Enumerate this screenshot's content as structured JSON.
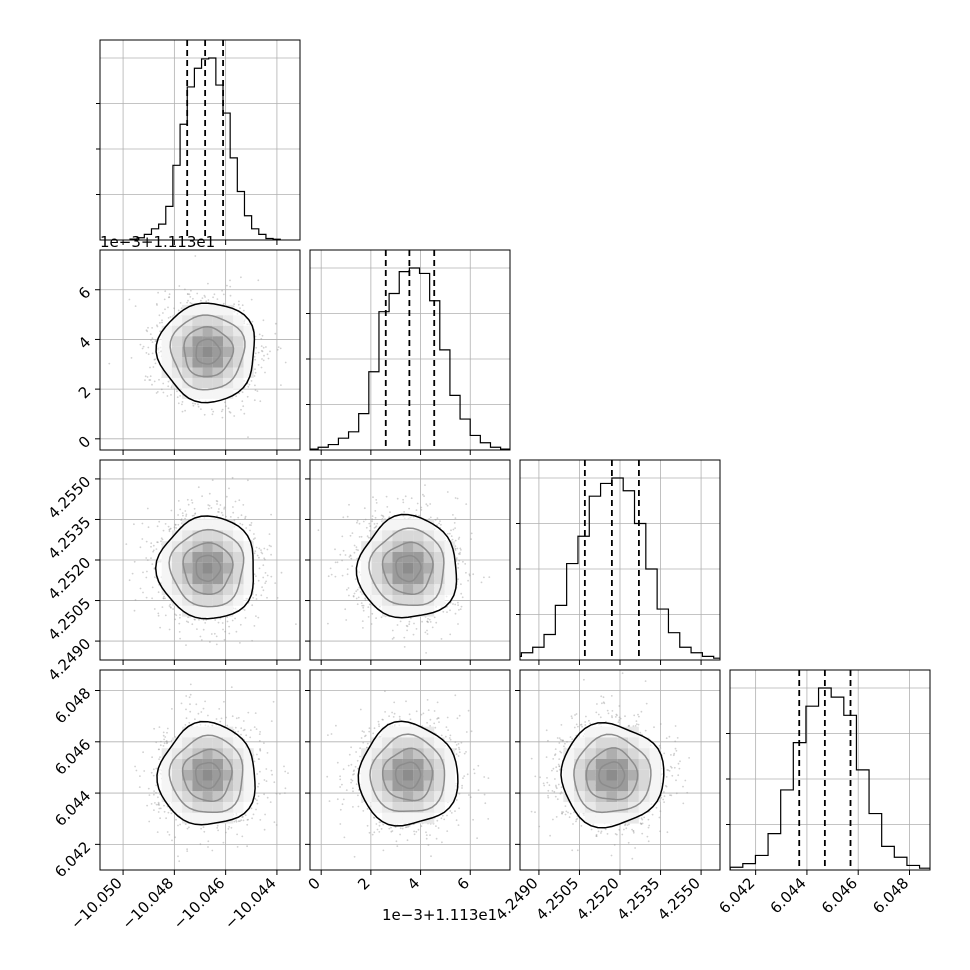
{
  "chart_data": {
    "type": "corner",
    "grid": true,
    "params": [
      {
        "range": [
          -10.0509,
          -10.0431
        ],
        "ticks": [
          -10.05,
          -10.048,
          -10.046,
          -10.044
        ],
        "tick_labels": [
          "−10.050",
          "−10.048",
          "−10.046",
          "−10.044"
        ],
        "quantiles": [
          -10.0475,
          -10.0468,
          -10.0461
        ],
        "hist_values": [
          0.005,
          0.012,
          0.03,
          0.06,
          0.085,
          0.18,
          0.4,
          0.62,
          0.82,
          0.92,
          0.97,
          0.975,
          0.83,
          0.68,
          0.44,
          0.26,
          0.13,
          0.06,
          0.03,
          0.008,
          0.004
        ]
      },
      {
        "range": [
          -0.45,
          7.6
        ],
        "ticks": [
          0,
          2,
          4,
          6
        ],
        "tick_labels": [
          "0",
          "2",
          "4",
          "6"
        ],
        "offset_label": "1e−3+1.113e1",
        "quantiles": [
          2.6,
          3.55,
          4.55
        ],
        "hist_values": [
          0.005,
          0.015,
          0.03,
          0.065,
          0.1,
          0.2,
          0.43,
          0.76,
          0.86,
          0.98,
          1.0,
          0.97,
          0.82,
          0.55,
          0.3,
          0.17,
          0.08,
          0.04,
          0.015,
          0.005
        ]
      },
      {
        "range": [
          4.2483,
          4.2557
        ],
        "ticks": [
          4.249,
          4.2505,
          4.252,
          4.2535,
          4.255
        ],
        "tick_labels": [
          "4.2490",
          "4.2505",
          "4.2520",
          "4.2535",
          "4.2550"
        ],
        "quantiles": [
          4.2507,
          4.2517,
          4.2527
        ],
        "hist_values": [
          0.005,
          0.02,
          0.04,
          0.07,
          0.14,
          0.3,
          0.53,
          0.68,
          0.9,
          0.97,
          1.0,
          0.93,
          0.75,
          0.5,
          0.28,
          0.15,
          0.07,
          0.04,
          0.02,
          0.01
        ]
      },
      {
        "range": [
          6.041,
          6.0488
        ],
        "ticks": [
          6.042,
          6.044,
          6.046,
          6.048
        ],
        "tick_labels": [
          "6.042",
          "6.044",
          "6.046",
          "6.048"
        ],
        "quantiles": [
          6.0437,
          6.0447,
          6.0457
        ],
        "hist_values": [
          0.005,
          0.015,
          0.035,
          0.08,
          0.2,
          0.44,
          0.7,
          0.9,
          1.0,
          0.95,
          0.85,
          0.55,
          0.31,
          0.13,
          0.07,
          0.025,
          0.01
        ]
      }
    ],
    "posterior_means": [
      -10.0467,
      3.5,
      4.2517,
      6.0447
    ],
    "posterior_sigmas": [
      0.00095,
      1.0,
      0.00095,
      0.001
    ]
  }
}
